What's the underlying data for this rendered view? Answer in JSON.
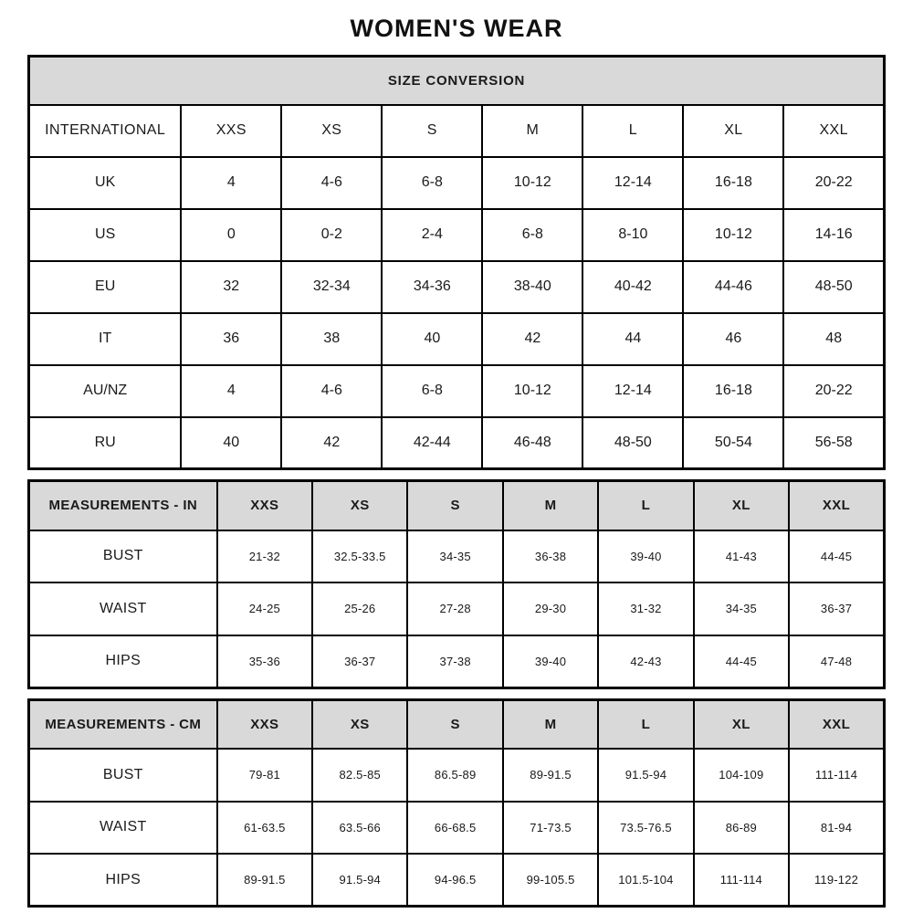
{
  "page_title": "WOMEN'S WEAR",
  "colors": {
    "header_bg": "#d9d9d9",
    "border": "#000000",
    "text": "#1a1a1a",
    "background": "#ffffff"
  },
  "chart_data": [
    {
      "type": "table",
      "name": "size-conversion",
      "banner": "SIZE CONVERSION",
      "columns": [
        "INTERNATIONAL",
        "XXS",
        "XS",
        "S",
        "M",
        "L",
        "XL",
        "XXL"
      ],
      "rows": [
        [
          "UK",
          "4",
          "4-6",
          "6-8",
          "10-12",
          "12-14",
          "16-18",
          "20-22"
        ],
        [
          "US",
          "0",
          "0-2",
          "2-4",
          "6-8",
          "8-10",
          "10-12",
          "14-16"
        ],
        [
          "EU",
          "32",
          "32-34",
          "34-36",
          "38-40",
          "40-42",
          "44-46",
          "48-50"
        ],
        [
          "IT",
          "36",
          "38",
          "40",
          "42",
          "44",
          "46",
          "48"
        ],
        [
          "AU/NZ",
          "4",
          "4-6",
          "6-8",
          "10-12",
          "12-14",
          "16-18",
          "20-22"
        ],
        [
          "RU",
          "40",
          "42",
          "42-44",
          "46-48",
          "48-50",
          "50-54",
          "56-58"
        ]
      ]
    },
    {
      "type": "table",
      "name": "measurements-in",
      "columns": [
        "MEASUREMENTS - IN",
        "XXS",
        "XS",
        "S",
        "M",
        "L",
        "XL",
        "XXL"
      ],
      "rows": [
        [
          "BUST",
          "21-32",
          "32.5-33.5",
          "34-35",
          "36-38",
          "39-40",
          "41-43",
          "44-45"
        ],
        [
          "WAIST",
          "24-25",
          "25-26",
          "27-28",
          "29-30",
          "31-32",
          "34-35",
          "36-37"
        ],
        [
          "HIPS",
          "35-36",
          "36-37",
          "37-38",
          "39-40",
          "42-43",
          "44-45",
          "47-48"
        ]
      ]
    },
    {
      "type": "table",
      "name": "measurements-cm",
      "columns": [
        "MEASUREMENTS - CM",
        "XXS",
        "XS",
        "S",
        "M",
        "L",
        "XL",
        "XXL"
      ],
      "rows": [
        [
          "BUST",
          "79-81",
          "82.5-85",
          "86.5-89",
          "89-91.5",
          "91.5-94",
          "104-109",
          "111-114"
        ],
        [
          "WAIST",
          "61-63.5",
          "63.5-66",
          "66-68.5",
          "71-73.5",
          "73.5-76.5",
          "86-89",
          "81-94"
        ],
        [
          "HIPS",
          "89-91.5",
          "91.5-94",
          "94-96.5",
          "99-105.5",
          "101.5-104",
          "111-114",
          "119-122"
        ]
      ]
    }
  ]
}
